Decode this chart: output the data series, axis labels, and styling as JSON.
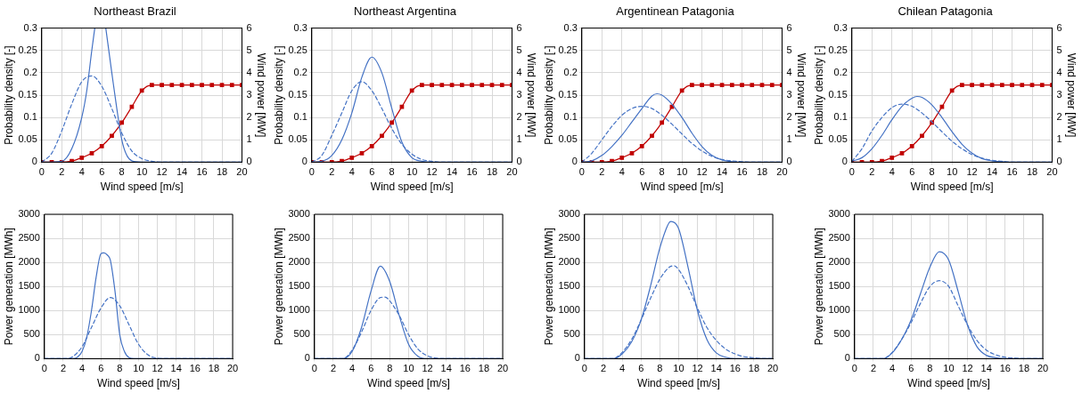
{
  "chart_data": [
    {
      "type": "line",
      "title": "Northeast Brazil",
      "xlabel": "Wind speed [m/s]",
      "ylabel": "Probability density [-]",
      "y2label": "Wind power [MW]",
      "xlim": [
        0,
        20
      ],
      "xticks": [
        0,
        2,
        4,
        6,
        8,
        10,
        12,
        14,
        16,
        18,
        20
      ],
      "ylim": [
        0,
        0.3
      ],
      "yticks": [
        0,
        0.05,
        0.1,
        0.15,
        0.2,
        0.25,
        0.3
      ],
      "y2lim": [
        0,
        6
      ],
      "y2ticks": [
        0,
        1,
        2,
        3,
        4,
        5,
        6
      ],
      "grid": true,
      "series": [
        {
          "color": "#4472c4",
          "line_style": "solid",
          "marker": "none",
          "x": [
            0,
            2,
            3,
            4,
            4.5,
            5,
            5.3,
            5.85,
            6.4,
            7,
            7.5,
            8,
            8.5,
            9,
            10,
            12,
            14,
            16,
            18,
            20
          ],
          "values": [
            0,
            0.002,
            0.03,
            0.1,
            0.16,
            0.25,
            0.3,
            null,
            0.3,
            0.2,
            0.12,
            0.05,
            0.015,
            0.003,
            0,
            0,
            0,
            0,
            0,
            0
          ]
        },
        {
          "color": "#4472c4",
          "line_style": "dashed",
          "marker": "none",
          "x": [
            0,
            1,
            2,
            3,
            4,
            5,
            6,
            7,
            8,
            9,
            10,
            11,
            12,
            14,
            16,
            18,
            20
          ],
          "values": [
            0,
            0.02,
            0.07,
            0.13,
            0.18,
            0.193,
            0.17,
            0.12,
            0.065,
            0.025,
            0.008,
            0.002,
            0,
            0,
            0,
            0,
            0
          ]
        },
        {
          "color": "#c00000",
          "line_style": "solid",
          "marker": "square",
          "axis": "y2",
          "x": [
            0,
            1,
            2,
            3,
            4,
            5,
            6,
            7,
            8,
            9,
            10,
            11,
            12,
            13,
            14,
            15,
            16,
            17,
            18,
            19,
            20
          ],
          "values": [
            0,
            0,
            0,
            0.05,
            0.2,
            0.4,
            0.72,
            1.18,
            1.77,
            2.48,
            3.2,
            3.45,
            3.45,
            3.45,
            3.45,
            3.45,
            3.45,
            3.45,
            3.45,
            3.45,
            3.45
          ]
        }
      ]
    },
    {
      "type": "line",
      "title": "Northeast Argentina",
      "xlabel": "Wind speed [m/s]",
      "ylabel": "Probability density [-]",
      "y2label": "Wind power [MW]",
      "xlim": [
        0,
        20
      ],
      "xticks": [
        0,
        2,
        4,
        6,
        8,
        10,
        12,
        14,
        16,
        18,
        20
      ],
      "ylim": [
        0,
        0.3
      ],
      "yticks": [
        0,
        0.05,
        0.1,
        0.15,
        0.2,
        0.25,
        0.3
      ],
      "y2lim": [
        0,
        6
      ],
      "y2ticks": [
        0,
        1,
        2,
        3,
        4,
        5,
        6
      ],
      "grid": true,
      "series": [
        {
          "color": "#4472c4",
          "line_style": "solid",
          "marker": "none",
          "x": [
            0,
            1,
            2,
            3,
            4,
            5,
            6,
            7,
            8,
            9,
            10,
            11,
            12,
            14,
            16,
            18,
            20
          ],
          "values": [
            0,
            0.002,
            0.015,
            0.05,
            0.11,
            0.19,
            0.235,
            0.2,
            0.12,
            0.045,
            0.01,
            0.002,
            0,
            0,
            0,
            0,
            0
          ]
        },
        {
          "color": "#4472c4",
          "line_style": "dashed",
          "marker": "none",
          "x": [
            0,
            1,
            2,
            3,
            4,
            5,
            6,
            7,
            8,
            9,
            10,
            11,
            12,
            13,
            14,
            16,
            18,
            20
          ],
          "values": [
            0,
            0.015,
            0.06,
            0.11,
            0.16,
            0.18,
            0.16,
            0.12,
            0.075,
            0.04,
            0.018,
            0.006,
            0.002,
            0,
            0,
            0,
            0,
            0
          ]
        },
        {
          "color": "#c00000",
          "line_style": "solid",
          "marker": "square",
          "axis": "y2",
          "x": [
            0,
            1,
            2,
            3,
            4,
            5,
            6,
            7,
            8,
            9,
            10,
            11,
            12,
            13,
            14,
            15,
            16,
            17,
            18,
            19,
            20
          ],
          "values": [
            0,
            0,
            0,
            0.05,
            0.2,
            0.4,
            0.72,
            1.18,
            1.77,
            2.48,
            3.2,
            3.45,
            3.45,
            3.45,
            3.45,
            3.45,
            3.45,
            3.45,
            3.45,
            3.45,
            3.45
          ]
        }
      ]
    },
    {
      "type": "line",
      "title": "Argentinean Patagonia",
      "xlabel": "Wind speed [m/s]",
      "ylabel": "Probability density [-]",
      "y2label": "Wind power [MW]",
      "xlim": [
        0,
        20
      ],
      "xticks": [
        0,
        2,
        4,
        6,
        8,
        10,
        12,
        14,
        16,
        18,
        20
      ],
      "ylim": [
        0,
        0.3
      ],
      "yticks": [
        0,
        0.05,
        0.1,
        0.15,
        0.2,
        0.25,
        0.3
      ],
      "y2lim": [
        0,
        6
      ],
      "y2ticks": [
        0,
        1,
        2,
        3,
        4,
        5,
        6
      ],
      "grid": true,
      "series": [
        {
          "color": "#4472c4",
          "line_style": "solid",
          "marker": "none",
          "x": [
            0,
            1,
            2,
            3,
            4,
            5,
            6,
            7,
            7.5,
            8,
            9,
            10,
            11,
            12,
            13,
            14,
            15,
            16,
            18,
            20
          ],
          "values": [
            0,
            0.003,
            0.015,
            0.035,
            0.06,
            0.09,
            0.12,
            0.148,
            0.153,
            0.15,
            0.13,
            0.1,
            0.065,
            0.035,
            0.015,
            0.005,
            0.001,
            0,
            0,
            0
          ]
        },
        {
          "color": "#4472c4",
          "line_style": "dashed",
          "marker": "none",
          "x": [
            0,
            1,
            2,
            3,
            4,
            5,
            6,
            7,
            8,
            9,
            10,
            11,
            12,
            13,
            14,
            15,
            16,
            17,
            18,
            20
          ],
          "values": [
            0,
            0.02,
            0.05,
            0.08,
            0.105,
            0.12,
            0.125,
            0.12,
            0.105,
            0.085,
            0.063,
            0.042,
            0.025,
            0.013,
            0.006,
            0.003,
            0.001,
            0,
            0,
            0
          ]
        },
        {
          "color": "#c00000",
          "line_style": "solid",
          "marker": "square",
          "axis": "y2",
          "x": [
            0,
            1,
            2,
            3,
            4,
            5,
            6,
            7,
            8,
            9,
            10,
            11,
            12,
            13,
            14,
            15,
            16,
            17,
            18,
            19,
            20
          ],
          "values": [
            0,
            0,
            0,
            0.05,
            0.2,
            0.4,
            0.72,
            1.18,
            1.77,
            2.48,
            3.2,
            3.45,
            3.45,
            3.45,
            3.45,
            3.45,
            3.45,
            3.45,
            3.45,
            3.45,
            3.45
          ]
        }
      ]
    },
    {
      "type": "line",
      "title": "Chilean Patagonia",
      "xlabel": "Wind speed [m/s]",
      "ylabel": "Probability density [-]",
      "y2label": "Wind power [MW]",
      "xlim": [
        0,
        20
      ],
      "xticks": [
        0,
        2,
        4,
        6,
        8,
        10,
        12,
        14,
        16,
        18,
        20
      ],
      "ylim": [
        0,
        0.3
      ],
      "yticks": [
        0,
        0.05,
        0.1,
        0.15,
        0.2,
        0.25,
        0.3
      ],
      "y2lim": [
        0,
        6
      ],
      "y2ticks": [
        0,
        1,
        2,
        3,
        4,
        5,
        6
      ],
      "grid": true,
      "series": [
        {
          "color": "#4472c4",
          "line_style": "solid",
          "marker": "none",
          "x": [
            0,
            1,
            2,
            3,
            4,
            5,
            6,
            6.5,
            7,
            8,
            9,
            10,
            11,
            12,
            13,
            14,
            15,
            16,
            18,
            20
          ],
          "values": [
            0.002,
            0.01,
            0.03,
            0.06,
            0.095,
            0.125,
            0.143,
            0.147,
            0.145,
            0.128,
            0.1,
            0.068,
            0.04,
            0.02,
            0.008,
            0.003,
            0.001,
            0,
            0,
            0
          ]
        },
        {
          "color": "#4472c4",
          "line_style": "dashed",
          "marker": "none",
          "x": [
            0,
            1,
            2,
            3,
            4,
            5,
            6,
            7,
            8,
            9,
            10,
            11,
            12,
            13,
            14,
            15,
            16,
            18,
            20
          ],
          "values": [
            0.002,
            0.03,
            0.07,
            0.1,
            0.122,
            0.13,
            0.125,
            0.11,
            0.09,
            0.068,
            0.047,
            0.03,
            0.017,
            0.009,
            0.004,
            0.002,
            0,
            0,
            0
          ]
        },
        {
          "color": "#c00000",
          "line_style": "solid",
          "marker": "square",
          "axis": "y2",
          "x": [
            0,
            1,
            2,
            3,
            4,
            5,
            6,
            7,
            8,
            9,
            10,
            11,
            12,
            13,
            14,
            15,
            16,
            17,
            18,
            19,
            20
          ],
          "values": [
            0,
            0,
            0,
            0.05,
            0.2,
            0.4,
            0.72,
            1.18,
            1.77,
            2.48,
            3.2,
            3.45,
            3.45,
            3.45,
            3.45,
            3.45,
            3.45,
            3.45,
            3.45,
            3.45,
            3.45
          ]
        }
      ]
    },
    {
      "type": "line",
      "xlabel": "Wind speed [m/s]",
      "ylabel": "Power generation [MWh]",
      "xlim": [
        0,
        20
      ],
      "xticks": [
        0,
        2,
        4,
        6,
        8,
        10,
        12,
        14,
        16,
        18,
        20
      ],
      "ylim": [
        0,
        3000
      ],
      "yticks": [
        0,
        500,
        1000,
        1500,
        2000,
        2500,
        3000
      ],
      "grid": true,
      "series": [
        {
          "color": "#4472c4",
          "line_style": "solid",
          "marker": "none",
          "x": [
            0,
            2,
            3,
            3.5,
            4,
            4.5,
            5,
            5.5,
            6,
            6.3,
            6.7,
            7,
            7.5,
            8,
            8.5,
            9,
            9.5,
            12,
            16,
            20
          ],
          "values": [
            0,
            0,
            0,
            30,
            150,
            450,
            1000,
            1700,
            2180,
            2200,
            2150,
            2050,
            1400,
            500,
            150,
            20,
            0,
            0,
            0,
            0
          ]
        },
        {
          "color": "#4472c4",
          "line_style": "dashed",
          "marker": "none",
          "x": [
            0,
            2.5,
            3,
            4,
            5,
            6,
            7,
            8,
            9,
            10,
            11,
            12,
            13,
            16,
            20
          ],
          "values": [
            0,
            0,
            40,
            250,
            650,
            1050,
            1270,
            1100,
            700,
            300,
            80,
            10,
            0,
            0,
            0
          ]
        }
      ]
    },
    {
      "type": "line",
      "xlabel": "Wind speed [m/s]",
      "ylabel": "Power generation [MWh]",
      "xlim": [
        0,
        20
      ],
      "xticks": [
        0,
        2,
        4,
        6,
        8,
        10,
        12,
        14,
        16,
        18,
        20
      ],
      "ylim": [
        0,
        3000
      ],
      "yticks": [
        0,
        500,
        1000,
        1500,
        2000,
        2500,
        3000
      ],
      "grid": true,
      "series": [
        {
          "color": "#4472c4",
          "line_style": "solid",
          "marker": "none",
          "x": [
            0,
            3,
            4,
            5,
            6,
            7,
            8,
            9,
            10,
            11,
            12,
            16,
            20
          ],
          "values": [
            0,
            0,
            150,
            650,
            1400,
            1920,
            1600,
            900,
            300,
            50,
            0,
            0,
            0
          ]
        },
        {
          "color": "#4472c4",
          "line_style": "dashed",
          "marker": "none",
          "x": [
            0,
            3,
            4,
            5,
            6,
            7,
            7.5,
            8,
            9,
            10,
            11,
            12,
            13,
            14,
            17,
            20
          ],
          "values": [
            0,
            0,
            180,
            550,
            1000,
            1270,
            1280,
            1200,
            900,
            500,
            200,
            60,
            10,
            0,
            0,
            0
          ]
        }
      ]
    },
    {
      "type": "line",
      "xlabel": "Wind speed [m/s]",
      "ylabel": "Power generation [MWh]",
      "xlim": [
        0,
        20
      ],
      "xticks": [
        0,
        2,
        4,
        6,
        8,
        10,
        12,
        14,
        16,
        18,
        20
      ],
      "ylim": [
        0,
        3000
      ],
      "yticks": [
        0,
        500,
        1000,
        1500,
        2000,
        2500,
        3000
      ],
      "grid": true,
      "series": [
        {
          "color": "#4472c4",
          "line_style": "solid",
          "marker": "none",
          "x": [
            0,
            3,
            4,
            5,
            6,
            7,
            8,
            9,
            9.2,
            10,
            11,
            12,
            13,
            14,
            15,
            16,
            20
          ],
          "values": [
            0,
            0,
            100,
            350,
            800,
            1500,
            2300,
            2830,
            2850,
            2700,
            1900,
            1000,
            400,
            120,
            30,
            0,
            0
          ]
        },
        {
          "color": "#4472c4",
          "line_style": "dashed",
          "marker": "none",
          "x": [
            0,
            3,
            4,
            5,
            6,
            7,
            8,
            9,
            9.5,
            10,
            11,
            12,
            13,
            14,
            15,
            16,
            17,
            18,
            19,
            20
          ],
          "values": [
            0,
            0,
            130,
            400,
            800,
            1250,
            1650,
            1900,
            1930,
            1850,
            1500,
            1050,
            650,
            380,
            200,
            100,
            40,
            20,
            0,
            0
          ]
        }
      ]
    },
    {
      "type": "line",
      "xlabel": "Wind speed [m/s]",
      "ylabel": "Power generation [MWh]",
      "xlim": [
        0,
        20
      ],
      "xticks": [
        0,
        2,
        4,
        6,
        8,
        10,
        12,
        14,
        16,
        18,
        20
      ],
      "ylim": [
        0,
        3000
      ],
      "yticks": [
        0,
        500,
        1000,
        1500,
        2000,
        2500,
        3000
      ],
      "grid": true,
      "series": [
        {
          "color": "#4472c4",
          "line_style": "solid",
          "marker": "none",
          "x": [
            0,
            3,
            4,
            5,
            6,
            7,
            8,
            9,
            10,
            11,
            12,
            13,
            14,
            15,
            16,
            20
          ],
          "values": [
            0,
            0,
            120,
            400,
            800,
            1350,
            1900,
            2220,
            2050,
            1400,
            700,
            250,
            70,
            20,
            0,
            0
          ]
        },
        {
          "color": "#4472c4",
          "line_style": "dashed",
          "marker": "none",
          "x": [
            0,
            3,
            4,
            5,
            6,
            7,
            8,
            9,
            10,
            11,
            12,
            13,
            14,
            15,
            16,
            17,
            18,
            20
          ],
          "values": [
            0,
            0,
            130,
            400,
            750,
            1150,
            1500,
            1620,
            1500,
            1100,
            700,
            380,
            180,
            80,
            30,
            10,
            0,
            0
          ]
        }
      ]
    }
  ]
}
